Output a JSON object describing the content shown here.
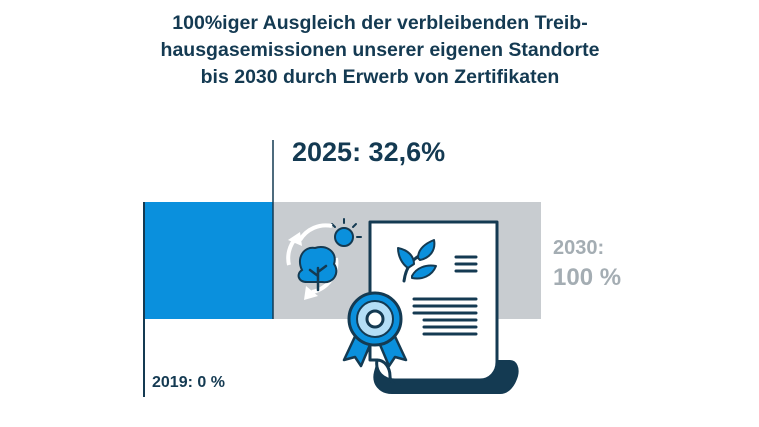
{
  "title": {
    "line1": "100%iger Ausgleich der verbleibenden Treib-",
    "line2": "hausgasemissionen unserer eigenen Standorte",
    "line3": "bis 2030 durch Erwerb von Zertifikaten"
  },
  "progress": {
    "current_label": "2025: 32,6%",
    "current_value_percent": 32.6,
    "target_label": "2030:",
    "target_value": "100 %",
    "start_label": "2019: 0 %"
  },
  "colors": {
    "navy": "#143a52",
    "blue": "#0a90dd",
    "grey": "#c8ccd0",
    "grey_text": "#a4adb3",
    "light_blue": "#b4def6"
  },
  "icons": [
    "recycle-sun-tree-icon",
    "certificate-icon",
    "leaf-icon",
    "award-rosette-icon"
  ]
}
